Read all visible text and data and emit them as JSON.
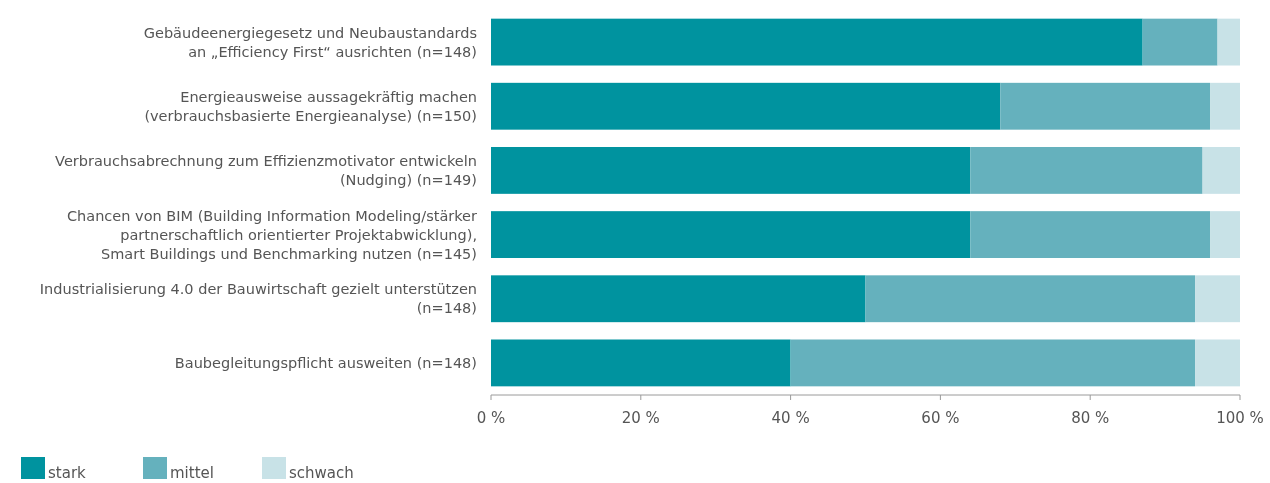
{
  "chart_data": {
    "type": "bar",
    "orientation": "horizontal",
    "stacked": true,
    "categories": [
      "Gebäudeenergiegesetz und Neubaustandards\nan „Efficiency First“ ausrichten (n=148)",
      "Energieausweise aussagekräftig machen\n(verbrauchsbasierte Energieanalyse) (n=150)",
      "Verbrauchsabrechnung zum Effizienzmotivator entwickeln\n(Nudging) (n=149)",
      "Chancen von BIM (Building Information Modeling/stärker\npartnerschaftlich orientierter Projektabwicklung),\nSmart Buildings und Benchmarking nutzen (n=145)",
      "Industrialisierung 4.0 der Bauwirtschaft gezielt unterstützen\n(n=148)",
      "Baubegleitungspflicht ausweiten (n=148)"
    ],
    "series": [
      {
        "name": "stark",
        "color": "#00939f",
        "values": [
          87,
          68,
          64,
          64,
          50,
          40
        ]
      },
      {
        "name": "mittel",
        "color": "#65b1bd",
        "values": [
          10,
          28,
          31,
          32,
          44,
          54
        ]
      },
      {
        "name": "schwach",
        "color": "#c8e2e7",
        "values": [
          3,
          4,
          5,
          4,
          6,
          6
        ]
      }
    ],
    "xlim": [
      0,
      100
    ],
    "xticks": [
      {
        "value": 0,
        "label": "0 %"
      },
      {
        "value": 20,
        "label": "20 %"
      },
      {
        "value": 40,
        "label": "40 %"
      },
      {
        "value": 60,
        "label": "60 %"
      },
      {
        "value": 80,
        "label": "80 %"
      },
      {
        "value": 100,
        "label": "100 %"
      }
    ],
    "legend": "bottom left"
  }
}
